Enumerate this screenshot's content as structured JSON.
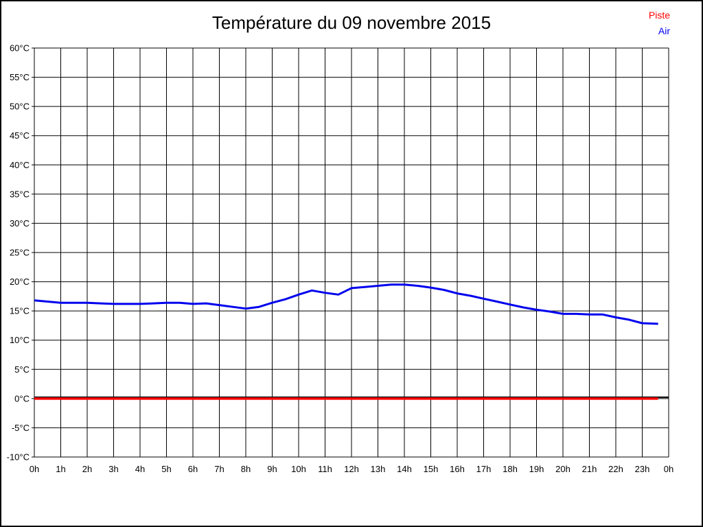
{
  "title": "Température du 09 novembre 2015",
  "legend": {
    "items": [
      {
        "label": "Piste",
        "color": "#ff0000"
      },
      {
        "label": "Air",
        "color": "#0000ee"
      }
    ]
  },
  "colors": {
    "grid": "#000000",
    "background": "#ffffff",
    "zero_axis": "#000000"
  },
  "chart_data": {
    "type": "line",
    "title": "Température du 09 novembre 2015",
    "xlabel": "",
    "ylabel": "",
    "grid": true,
    "legend_position": "top-right",
    "x_axis": {
      "min": 0,
      "max": 24,
      "tick_interval": 1,
      "tick_labels": [
        "0h",
        "1h",
        "2h",
        "3h",
        "4h",
        "5h",
        "6h",
        "7h",
        "8h",
        "9h",
        "10h",
        "11h",
        "12h",
        "13h",
        "14h",
        "15h",
        "16h",
        "17h",
        "18h",
        "19h",
        "20h",
        "21h",
        "22h",
        "23h",
        "0h"
      ]
    },
    "y_axis": {
      "min": -10,
      "max": 60,
      "tick_interval": 5,
      "tick_labels": [
        "60°C",
        "55°C",
        "50°C",
        "45°C",
        "40°C",
        "35°C",
        "30°C",
        "25°C",
        "20°C",
        "15°C",
        "10°C",
        "5°C",
        "0°C",
        "-5°C",
        "-10°C"
      ]
    },
    "zero_axis": {
      "value": 0,
      "bold": true,
      "color": "#000000",
      "width": 2
    },
    "series": [
      {
        "name": "Piste",
        "color": "#ff0000",
        "width": 3.5,
        "x": [
          0,
          23.6
        ],
        "values": [
          0,
          0
        ]
      },
      {
        "name": "Air",
        "color": "#0000ee",
        "width": 3,
        "x": [
          0,
          0.5,
          1,
          1.5,
          2,
          2.5,
          3,
          3.5,
          4,
          4.5,
          5,
          5.5,
          6,
          6.5,
          7,
          7.5,
          8,
          8.5,
          9,
          9.5,
          10,
          10.5,
          11,
          11.5,
          12,
          12.5,
          13,
          13.5,
          14,
          14.5,
          15,
          15.5,
          16,
          16.5,
          17,
          17.5,
          18,
          18.5,
          19,
          19.5,
          20,
          20.5,
          21,
          21.5,
          22,
          22.5,
          23,
          23.6
        ],
        "values": [
          16.8,
          16.6,
          16.4,
          16.4,
          16.4,
          16.3,
          16.2,
          16.2,
          16.2,
          16.3,
          16.4,
          16.4,
          16.2,
          16.3,
          16.0,
          15.7,
          15.4,
          15.7,
          16.4,
          17.0,
          17.8,
          18.5,
          18.1,
          17.8,
          18.9,
          19.1,
          19.3,
          19.5,
          19.5,
          19.3,
          19.0,
          18.6,
          18.0,
          17.6,
          17.1,
          16.6,
          16.1,
          15.6,
          15.2,
          14.9,
          14.5,
          14.5,
          14.4,
          14.4,
          13.9,
          13.5,
          12.9,
          12.8
        ]
      }
    ]
  }
}
